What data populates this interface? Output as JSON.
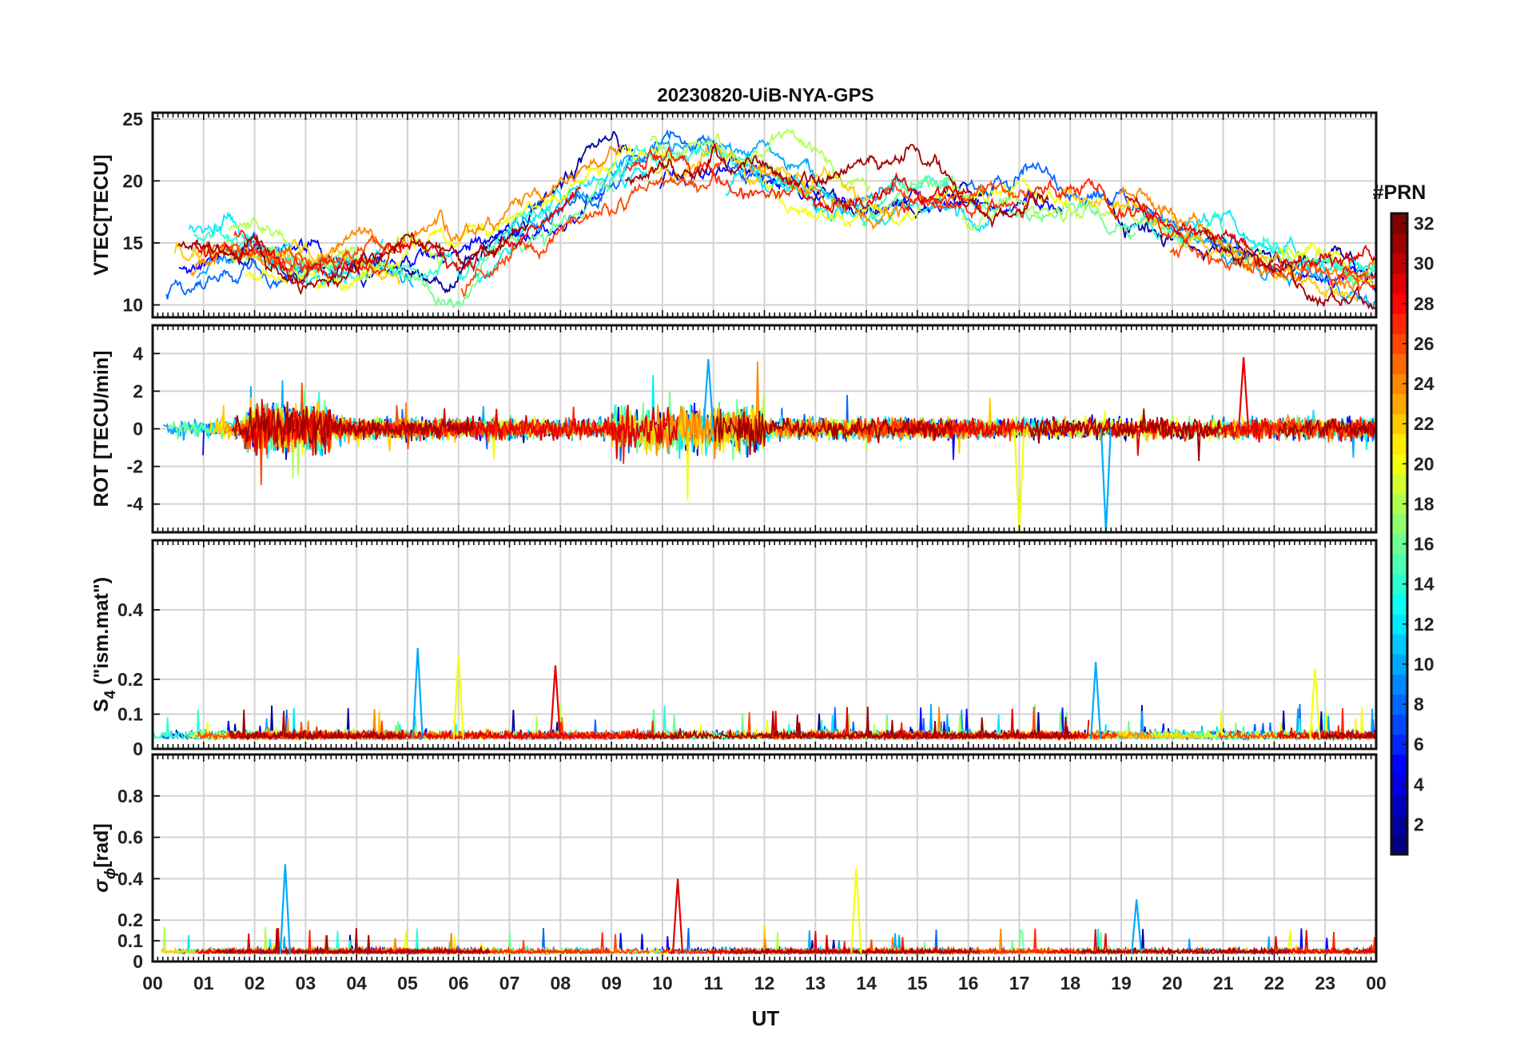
{
  "chart_data": {
    "type": "line",
    "title": "20230820-UiB-NYA-GPS",
    "xlabel": "UT",
    "x_tick_labels": [
      "00",
      "01",
      "02",
      "03",
      "04",
      "05",
      "06",
      "07",
      "08",
      "09",
      "10",
      "11",
      "12",
      "13",
      "14",
      "15",
      "16",
      "17",
      "18",
      "19",
      "20",
      "21",
      "22",
      "23",
      "00"
    ],
    "xlim_hours": [
      0,
      24
    ],
    "colorbar": {
      "label": "#PRN",
      "range": [
        1,
        32
      ],
      "ticks": [
        2,
        4,
        6,
        8,
        10,
        12,
        14,
        16,
        18,
        20,
        22,
        24,
        26,
        28,
        30,
        32
      ],
      "colormap": "jet"
    },
    "series_prns": [
      2,
      5,
      8,
      10,
      12,
      14,
      16,
      18,
      20,
      22,
      24,
      26,
      27,
      29,
      31
    ],
    "panels": [
      {
        "id": "vtec",
        "ylabel": "VTEC[TECU]",
        "ylim": [
          9,
          25.5
        ],
        "yticks": [
          10,
          15,
          20,
          25
        ],
        "ytick_labels": [
          "10",
          "15",
          "20",
          "25"
        ],
        "baseline": 16,
        "overall_trend": [
          [
            0,
            12.5
          ],
          [
            1,
            14
          ],
          [
            2,
            14.5
          ],
          [
            3,
            13.5
          ],
          [
            4,
            13.5
          ],
          [
            5,
            14
          ],
          [
            6,
            13.5
          ],
          [
            7,
            15.5
          ],
          [
            8,
            18
          ],
          [
            9,
            20
          ],
          [
            10,
            21.5
          ],
          [
            11,
            21.5
          ],
          [
            12,
            20.5
          ],
          [
            13,
            19.5
          ],
          [
            14,
            19
          ],
          [
            15,
            19
          ],
          [
            16,
            18.5
          ],
          [
            17,
            19
          ],
          [
            18,
            18.5
          ],
          [
            19,
            17.5
          ],
          [
            20,
            16
          ],
          [
            21,
            14.5
          ],
          [
            22,
            13
          ],
          [
            23,
            12.5
          ],
          [
            24,
            12
          ]
        ]
      },
      {
        "id": "rot",
        "ylabel": "ROT [TECU/min]",
        "ylim": [
          -5.5,
          5.5
        ],
        "yticks": [
          -4,
          -2,
          0,
          2,
          4
        ],
        "ytick_labels": [
          "-4",
          "-2",
          "0",
          "2",
          "4"
        ],
        "baseline": 0
      },
      {
        "id": "s4",
        "ylabel_main": "S",
        "ylabel_sub": "4",
        "ylabel_rest": " (\"ism.mat\")",
        "ylim": [
          0,
          0.6
        ],
        "yticks": [
          0,
          0.1,
          0.2,
          0.4
        ],
        "ytick_labels": [
          "0",
          "0.1",
          "0.2",
          "0.4"
        ],
        "baseline": 0.03
      },
      {
        "id": "sigphi",
        "ylabel_main": "σ",
        "ylabel_sub": "ϕ",
        "ylabel_rest": "[rad]",
        "ylim": [
          0,
          1.0
        ],
        "yticks": [
          0,
          0.1,
          0.2,
          0.4,
          0.6,
          0.8
        ],
        "ytick_labels": [
          "0",
          "0.1",
          "0.2",
          "0.4",
          "0.6",
          "0.8"
        ],
        "baseline": 0.04
      }
    ],
    "notable_spikes": [
      {
        "panel": "s4",
        "hour": 5.2,
        "value": 0.29
      },
      {
        "panel": "s4",
        "hour": 6.0,
        "value": 0.27
      },
      {
        "panel": "s4",
        "hour": 7.9,
        "value": 0.24
      },
      {
        "panel": "s4",
        "hour": 18.5,
        "value": 0.25
      },
      {
        "panel": "s4",
        "hour": 22.8,
        "value": 0.23
      },
      {
        "panel": "sigphi",
        "hour": 2.6,
        "value": 0.47
      },
      {
        "panel": "sigphi",
        "hour": 13.8,
        "value": 0.45
      },
      {
        "panel": "sigphi",
        "hour": 10.3,
        "value": 0.4
      },
      {
        "panel": "sigphi",
        "hour": 19.3,
        "value": 0.3
      },
      {
        "panel": "rot",
        "hour": 18.7,
        "value": -5.5
      },
      {
        "panel": "rot",
        "hour": 17.0,
        "value": -5.4
      },
      {
        "panel": "rot",
        "hour": 21.4,
        "value": 3.8
      },
      {
        "panel": "rot",
        "hour": 10.9,
        "value": 3.7
      }
    ]
  }
}
